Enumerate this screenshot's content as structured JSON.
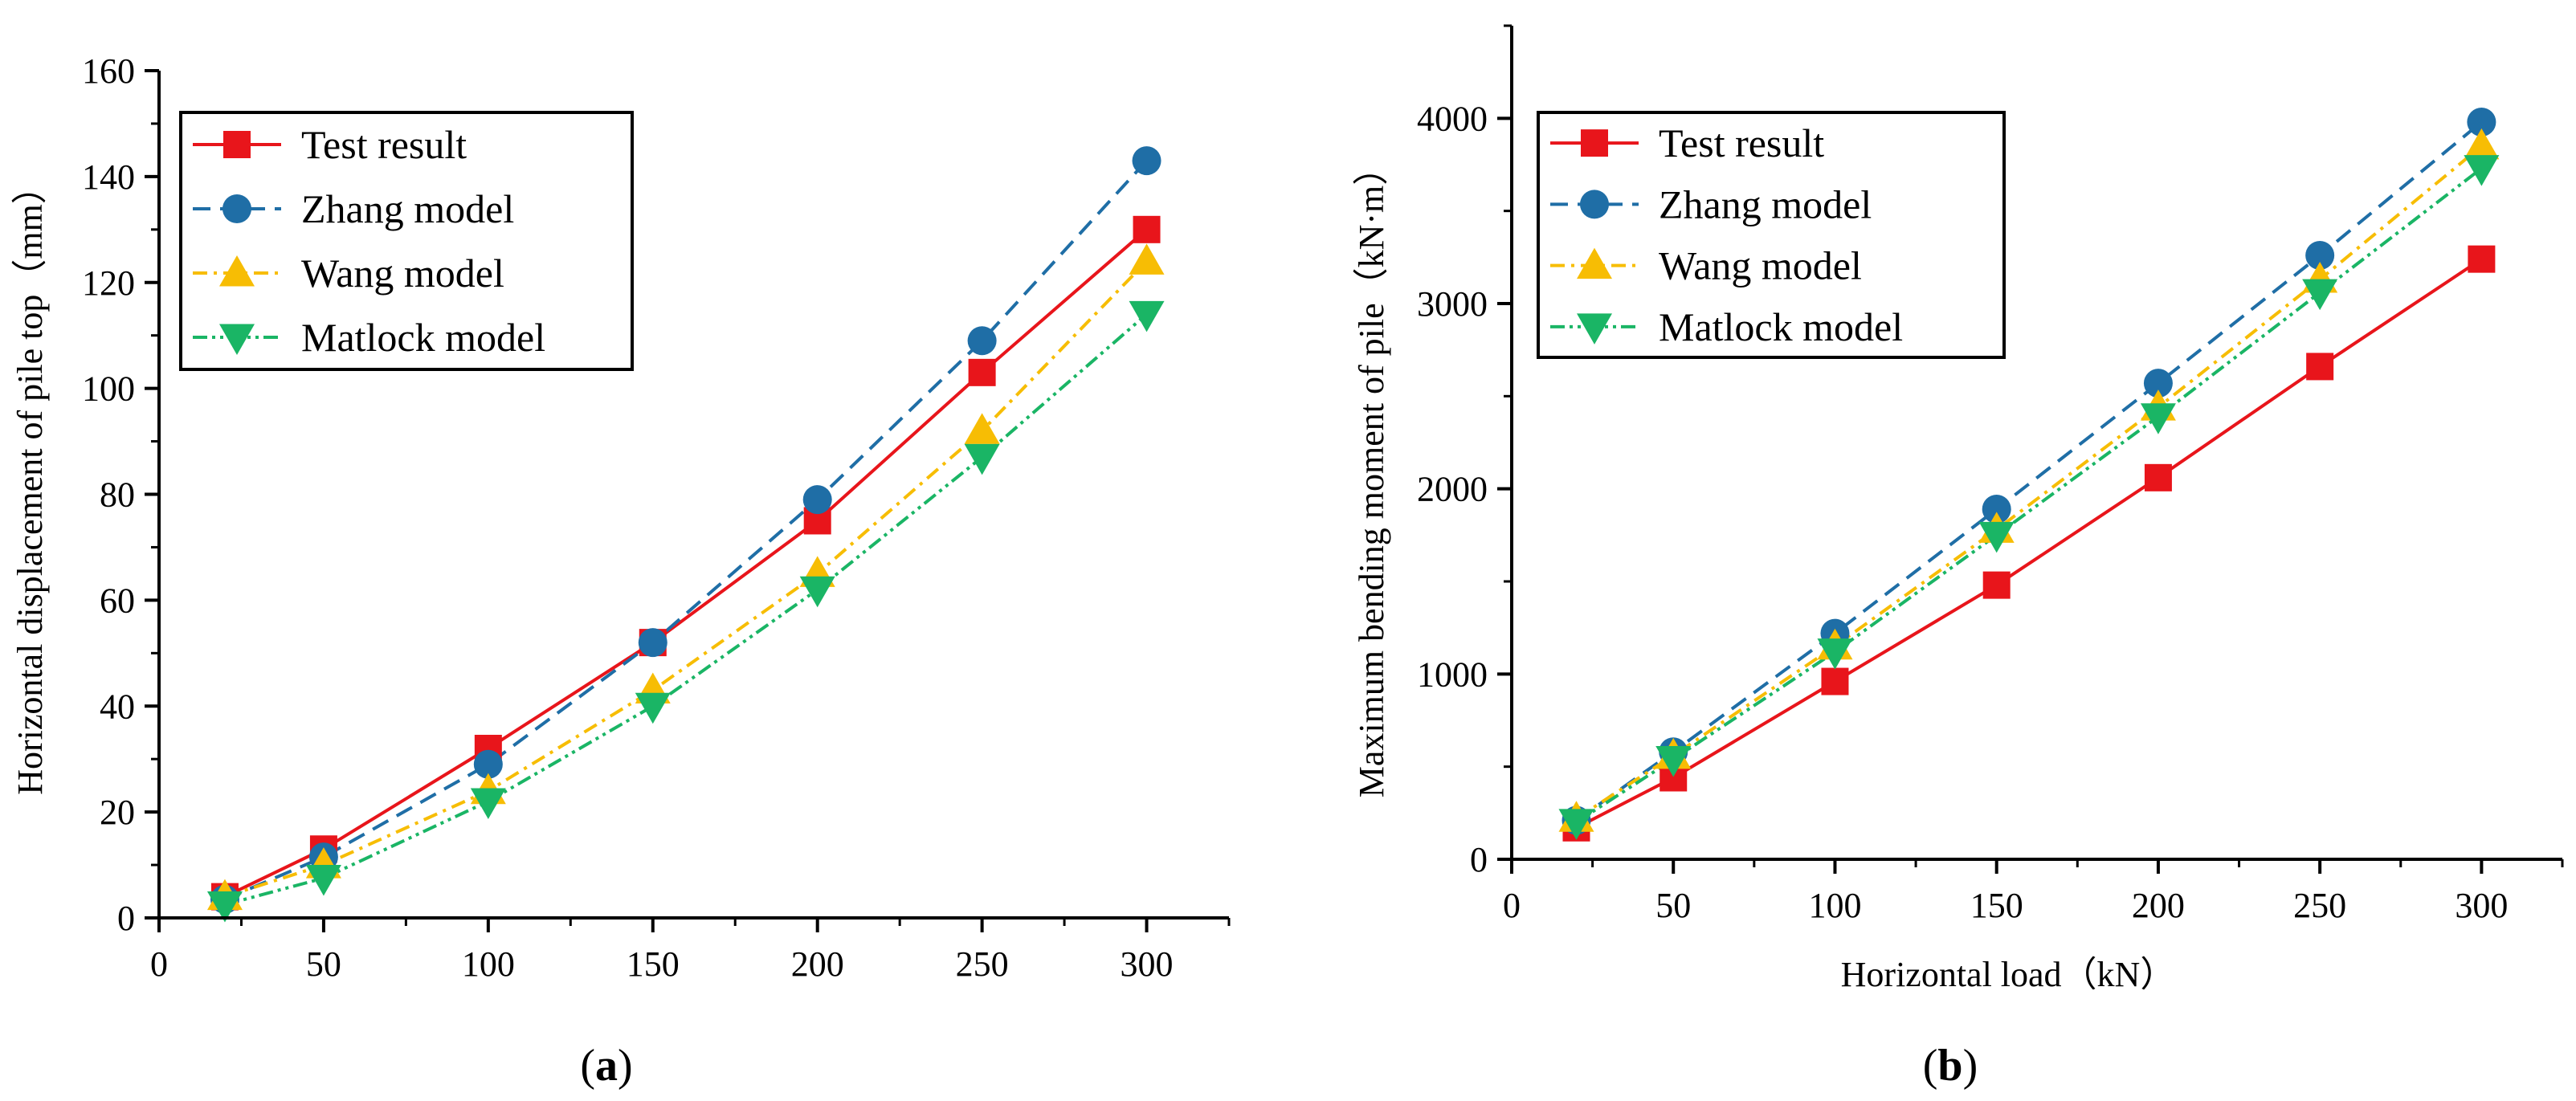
{
  "chart_data": [
    {
      "type": "line",
      "panel": "a",
      "caption_letter": "a",
      "xlabel": "",
      "ylabel": "Horizontal displacement of pile top（mm）",
      "xlim": [
        0,
        325
      ],
      "ylim": [
        0,
        160
      ],
      "xticks": [
        0,
        50,
        100,
        150,
        200,
        250,
        300
      ],
      "yticks": [
        0,
        20,
        40,
        60,
        80,
        100,
        120,
        140,
        160
      ],
      "legend_position": "top-left",
      "x": [
        20,
        50,
        100,
        150,
        200,
        250,
        300
      ],
      "series": [
        {
          "name": "Test result",
          "marker": "square",
          "dash": "solid",
          "color": "#e8151b",
          "values": [
            4,
            13,
            32,
            52,
            75,
            103,
            130
          ]
        },
        {
          "name": "Zhang model",
          "marker": "circle",
          "dash": "dashed",
          "color": "#1f6ea6",
          "values": [
            3.5,
            11.5,
            29,
            52,
            79,
            109,
            143
          ]
        },
        {
          "name": "Wang model",
          "marker": "triangle-up",
          "dash": "dashdot",
          "color": "#f7bd04",
          "values": [
            4,
            10,
            24,
            43,
            65,
            92,
            124
          ]
        },
        {
          "name": "Matlock model",
          "marker": "triangle-down",
          "dash": "dashdotdot",
          "color": "#1ab565",
          "values": [
            2.5,
            7.5,
            22,
            40,
            62,
            87,
            114
          ]
        }
      ]
    },
    {
      "type": "line",
      "panel": "b",
      "caption_letter": "b",
      "xlabel": "Horizontal load（kN）",
      "ylabel": "Maximum bending moment of pile（kN·m）",
      "xlim": [
        0,
        325
      ],
      "ylim": [
        0,
        4500
      ],
      "xticks": [
        0,
        50,
        100,
        150,
        200,
        250,
        300
      ],
      "yticks": [
        0,
        1000,
        2000,
        3000,
        4000
      ],
      "legend_position": "top-left",
      "x": [
        20,
        50,
        100,
        150,
        200,
        250,
        300
      ],
      "series": [
        {
          "name": "Test result",
          "marker": "square",
          "dash": "solid",
          "color": "#e8151b",
          "values": [
            170,
            440,
            960,
            1480,
            2060,
            2660,
            3240
          ]
        },
        {
          "name": "Zhang model",
          "marker": "circle",
          "dash": "dashed",
          "color": "#1f6ea6",
          "values": [
            210,
            580,
            1220,
            1890,
            2570,
            3260,
            3980
          ]
        },
        {
          "name": "Wang model",
          "marker": "triangle-up",
          "dash": "dashdot",
          "color": "#f7bd04",
          "values": [
            220,
            560,
            1150,
            1780,
            2440,
            3130,
            3850
          ]
        },
        {
          "name": "Matlock model",
          "marker": "triangle-down",
          "dash": "dashdotdot",
          "color": "#1ab565",
          "values": [
            200,
            540,
            1120,
            1750,
            2390,
            3060,
            3730
          ]
        }
      ]
    }
  ]
}
